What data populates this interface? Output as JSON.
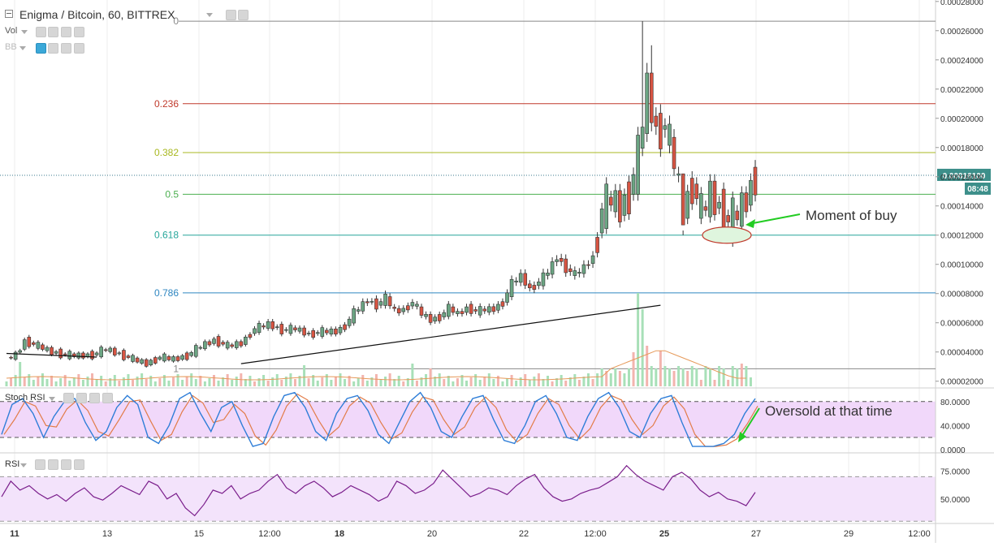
{
  "header": {
    "symbol_line": "Enigma / Bitcoin, 60, BITTREX",
    "indicators": [
      "Vol",
      "BB"
    ]
  },
  "price_labels": {
    "last_price": "0.00016100",
    "countdown": "08:48"
  },
  "colors": {
    "up": "#6ba583",
    "down": "#d75442",
    "accent": "#3ba8d8",
    "stoch_k": "#2f7ed8",
    "stoch_d": "#e27c48",
    "rsi": "#7b1f8c",
    "panel_fill": "#f1d8fa"
  },
  "annotations": [
    {
      "text": "Moment of buy",
      "color": "#22cc22"
    },
    {
      "text": "Oversold at that time",
      "color": "#22cc22"
    }
  ],
  "chart_data": [
    {
      "type": "candlestick",
      "title": "Enigma / Bitcoin, 60, BITTREX",
      "x_tick_labels": [
        "11",
        "13",
        "15",
        "12:00",
        "18",
        "20",
        "22",
        "12:00",
        "25",
        "27",
        "29",
        "12:00"
      ],
      "y_tick_labels": [
        "0.00002000",
        "0.00004000",
        "0.00006000",
        "0.00008000",
        "0.00010000",
        "0.00012000",
        "0.00014000",
        "0.00016000",
        "0.00018000",
        "0.00020000",
        "0.00022000",
        "0.00024000",
        "0.00026000",
        "0.00028000"
      ],
      "ylim": [
        1.65e-05,
        0.000281
      ],
      "last_price": 0.000161,
      "fibonacci_levels": [
        {
          "label": "0",
          "price": 0.0002665,
          "color": "#888888"
        },
        {
          "label": "0.236",
          "price": 0.00021,
          "color": "#c0392b"
        },
        {
          "label": "0.382",
          "price": 0.0001765,
          "color": "#a8b820"
        },
        {
          "label": "0.5",
          "price": 0.000148,
          "color": "#4caf50"
        },
        {
          "label": "0.618",
          "price": 0.00012,
          "color": "#26a69a"
        },
        {
          "label": "0.786",
          "price": 8.05e-05,
          "color": "#2e86c1"
        },
        {
          "label": "1",
          "price": 2.85e-05,
          "color": "#888888"
        }
      ],
      "price_path": [
        [
          0,
          3.55e-05
        ],
        [
          2,
          3.8e-05
        ],
        [
          4,
          4.75e-05
        ],
        [
          7,
          4.4e-05
        ],
        [
          10,
          4e-05
        ],
        [
          13,
          3.8e-05
        ],
        [
          16,
          3.75e-05
        ],
        [
          19,
          3.8e-05
        ],
        [
          22,
          4.2e-05
        ],
        [
          25,
          3.85e-05
        ],
        [
          28,
          3.5e-05
        ],
        [
          31,
          3.2e-05
        ],
        [
          34,
          3.65e-05
        ],
        [
          37,
          3.5e-05
        ],
        [
          40,
          3.75e-05
        ],
        [
          43,
          4.4e-05
        ],
        [
          46,
          4.8e-05
        ],
        [
          49,
          4.4e-05
        ],
        [
          52,
          4.6e-05
        ],
        [
          55,
          5.6e-05
        ],
        [
          58,
          5.9e-05
        ],
        [
          61,
          5.5e-05
        ],
        [
          64,
          5.6e-05
        ],
        [
          67,
          5.2e-05
        ],
        [
          70,
          5.4e-05
        ],
        [
          73,
          5.4e-05
        ],
        [
          75,
          5.8e-05
        ],
        [
          77,
          6.7e-05
        ],
        [
          80,
          7.55e-05
        ],
        [
          82,
          7.2e-05
        ],
        [
          84,
          7.7e-05
        ],
        [
          86,
          6.8e-05
        ],
        [
          88,
          6.9e-05
        ],
        [
          90,
          7.4e-05
        ],
        [
          92,
          6.6e-05
        ],
        [
          94,
          6.2e-05
        ],
        [
          96,
          6.4e-05
        ],
        [
          98,
          7e-05
        ],
        [
          100,
          6.6e-05
        ],
        [
          102,
          7e-05
        ],
        [
          104,
          6.8e-05
        ],
        [
          106,
          6.9e-05
        ],
        [
          108,
          6.95e-05
        ],
        [
          110,
          7.4e-05
        ],
        [
          112,
          8.7e-05
        ],
        [
          114,
          9.2e-05
        ],
        [
          116,
          8.3e-05
        ],
        [
          118,
          8.8e-05
        ],
        [
          120,
          9.5e-05
        ],
        [
          122,
          0.000105
        ],
        [
          124,
          9.7e-05
        ],
        [
          126,
          9.3e-05
        ],
        [
          128,
          9.8e-05
        ],
        [
          130,
          0.000105
        ],
        [
          132,
          0.000138
        ],
        [
          134,
          0.000145
        ],
        [
          136,
          0.000138
        ],
        [
          138,
          0.000148
        ],
        [
          140,
          0.000175
        ],
        [
          142,
          0.000222
        ],
        [
          144,
          0.00019
        ],
        [
          146,
          0.000195
        ],
        [
          148,
          0.00017
        ],
        [
          150,
          0.000136
        ],
        [
          152,
          0.000155
        ],
        [
          154,
          0.000135
        ],
        [
          156,
          0.000148
        ],
        [
          158,
          0.000138
        ],
        [
          160,
          0.000129
        ],
        [
          162,
          0.000135
        ],
        [
          164,
          0.000145
        ],
        [
          166,
          0.000161
        ]
      ],
      "price_spikes": [
        [
          141,
          0.0002665
        ],
        [
          143,
          0.00025
        ],
        [
          146,
          0.0002
        ],
        [
          150,
          0.00012
        ]
      ],
      "trendlines": [
        {
          "from": [
            0,
            3.9e-05
          ],
          "to": [
            20,
            3.65e-05
          ]
        },
        {
          "from": [
            52,
            3.2e-05
          ],
          "to": [
            145,
            7.2e-05
          ]
        }
      ]
    },
    {
      "type": "line",
      "title": "Stoch RSI",
      "y_tick_labels": [
        "80.0000",
        "40.0000",
        "0.0000"
      ],
      "ylim": [
        -3,
        100
      ],
      "bands": [
        20,
        80
      ],
      "series": [
        {
          "name": "K",
          "values": [
            25,
            75,
            85,
            60,
            20,
            55,
            80,
            85,
            45,
            15,
            30,
            70,
            90,
            75,
            20,
            10,
            40,
            85,
            95,
            60,
            30,
            70,
            80,
            40,
            5,
            10,
            55,
            90,
            95,
            70,
            30,
            15,
            60,
            85,
            90,
            65,
            25,
            10,
            45,
            80,
            95,
            70,
            30,
            20,
            55,
            85,
            90,
            50,
            15,
            10,
            40,
            80,
            90,
            60,
            20,
            15,
            55,
            85,
            95,
            70,
            30,
            20,
            60,
            85,
            90,
            45,
            5,
            5,
            5,
            10,
            25,
            60,
            85
          ]
        }
      ]
    },
    {
      "type": "line",
      "title": "RSI",
      "y_tick_labels": [
        "75.0000",
        "50.0000"
      ],
      "ylim": [
        28,
        90
      ],
      "bands": [
        30,
        70
      ],
      "series": [
        {
          "name": "RSI",
          "values": [
            52,
            66,
            58,
            62,
            55,
            50,
            54,
            48,
            55,
            60,
            52,
            49,
            55,
            62,
            58,
            54,
            66,
            62,
            50,
            55,
            42,
            35,
            45,
            58,
            55,
            62,
            50,
            55,
            58,
            66,
            72,
            60,
            55,
            62,
            66,
            60,
            52,
            56,
            62,
            58,
            54,
            48,
            52,
            66,
            62,
            55,
            58,
            64,
            76,
            68,
            60,
            52,
            55,
            60,
            58,
            54,
            62,
            68,
            72,
            60,
            52,
            48,
            50,
            55,
            58,
            60,
            65,
            70,
            80,
            72,
            66,
            62,
            58,
            70,
            74,
            68,
            58,
            52,
            56,
            50,
            48,
            44,
            56
          ]
        }
      ]
    }
  ]
}
